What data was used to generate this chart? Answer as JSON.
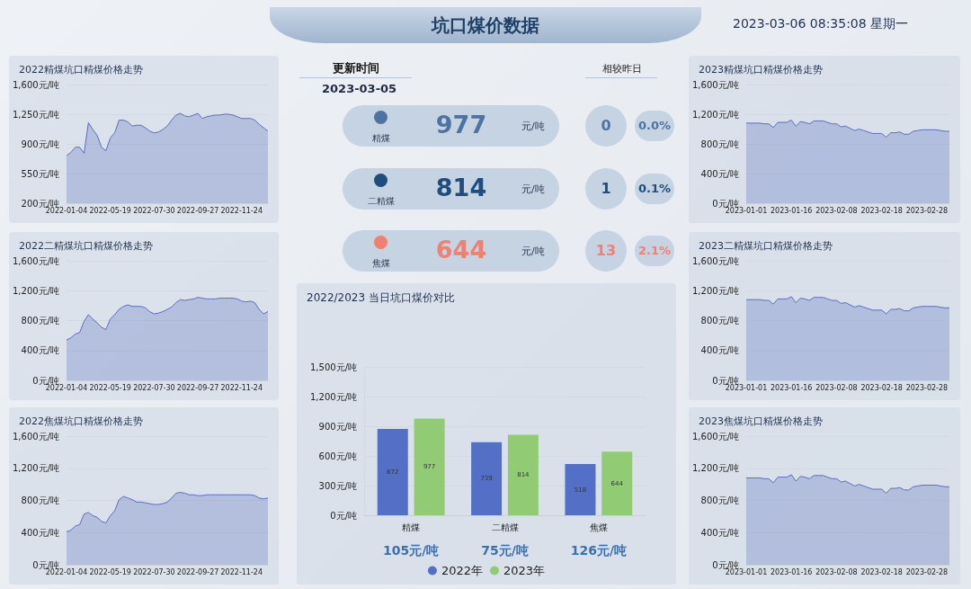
{
  "chart_data": [
    {
      "type": "other",
      "title": "坑口煤价数据",
      "annotations": [
        "2023-03-06 08:35:08 星期一",
        "更新时间",
        "2023-03-05",
        "相较昨日",
        "精煤",
        "977",
        "元/吨",
        "0",
        "0.0%",
        "二精煤",
        "814",
        "元/吨",
        "1",
        "0.1%",
        "焦煤",
        "644",
        "元/吨",
        "13",
        "2.1%"
      ]
    },
    {
      "type": "area",
      "title": "2022精煤坑口精煤价格走势",
      "color": "#5b6fbf",
      "grid": "y",
      "ylim": [
        200,
        1600
      ],
      "yticks": [
        {
          "value": 200,
          "label": "200元/吨"
        },
        {
          "value": 550,
          "label": "550元/吨"
        },
        {
          "value": 900,
          "label": "900元/吨"
        },
        {
          "value": 1250,
          "label": "1,250元/吨"
        },
        {
          "value": 1600,
          "label": "1,600元/吨"
        }
      ],
      "categories": [
        "2022-01-04",
        null,
        null,
        null,
        null,
        null,
        null,
        null,
        null,
        null,
        "2022-05-19",
        null,
        null,
        null,
        null,
        null,
        null,
        null,
        null,
        null,
        "2022-07-30",
        null,
        null,
        null,
        null,
        null,
        null,
        null,
        null,
        null,
        "2022-09-27",
        null,
        null,
        null,
        null,
        null,
        null,
        null,
        null,
        null,
        "2022-11-24",
        null,
        null,
        null,
        null,
        null,
        null
      ],
      "values": [
        760,
        800,
        860,
        860,
        790,
        1150,
        1070,
        1000,
        860,
        820,
        970,
        1030,
        1180,
        1180,
        1160,
        1110,
        1120,
        1120,
        1090,
        1050,
        1030,
        1040,
        1070,
        1110,
        1180,
        1240,
        1260,
        1230,
        1220,
        1240,
        1260,
        1200,
        1220,
        1230,
        1240,
        1240,
        1250,
        1250,
        1240,
        1220,
        1200,
        1200,
        1200,
        1180,
        1130,
        1090,
        1050
      ]
    },
    {
      "type": "area",
      "title": "2022二精煤坑口精煤价格走势",
      "color": "#5b6fbf",
      "grid": "y",
      "ylim": [
        0,
        1600
      ],
      "yticks": [
        {
          "value": 0,
          "label": "0元/吨"
        },
        {
          "value": 400,
          "label": "400元/吨"
        },
        {
          "value": 800,
          "label": "800元/吨"
        },
        {
          "value": 1200,
          "label": "1,200元/吨"
        },
        {
          "value": 1600,
          "label": "1,600元/吨"
        }
      ],
      "categories": [
        "2022-01-04",
        null,
        null,
        null,
        null,
        null,
        null,
        null,
        null,
        null,
        "2022-05-19",
        null,
        null,
        null,
        null,
        null,
        null,
        null,
        null,
        null,
        "2022-07-30",
        null,
        null,
        null,
        null,
        null,
        null,
        null,
        null,
        null,
        "2022-09-27",
        null,
        null,
        null,
        null,
        null,
        null,
        null,
        null,
        null,
        "2022-11-24",
        null,
        null,
        null,
        null,
        null,
        null
      ],
      "values": [
        540,
        570,
        620,
        640,
        790,
        880,
        820,
        770,
        710,
        680,
        820,
        880,
        950,
        990,
        1010,
        990,
        990,
        990,
        970,
        920,
        890,
        900,
        920,
        950,
        980,
        1040,
        1080,
        1070,
        1080,
        1090,
        1110,
        1100,
        1090,
        1090,
        1090,
        1100,
        1100,
        1100,
        1100,
        1090,
        1060,
        1050,
        1060,
        1040,
        950,
        890,
        920
      ]
    },
    {
      "type": "area",
      "title": "2022焦煤坑口精煤价格走势",
      "color": "#5b6fbf",
      "grid": "y",
      "ylim": [
        0,
        1600
      ],
      "yticks": [
        {
          "value": 0,
          "label": "0元/吨"
        },
        {
          "value": 400,
          "label": "400元/吨"
        },
        {
          "value": 800,
          "label": "800元/吨"
        },
        {
          "value": 1200,
          "label": "1,200元/吨"
        },
        {
          "value": 1600,
          "label": "1,600元/吨"
        }
      ],
      "categories": [
        "2022-01-04",
        null,
        null,
        null,
        null,
        null,
        null,
        null,
        null,
        null,
        "2022-05-19",
        null,
        null,
        null,
        null,
        null,
        null,
        null,
        null,
        null,
        "2022-07-30",
        null,
        null,
        null,
        null,
        null,
        null,
        null,
        null,
        null,
        "2022-09-27",
        null,
        null,
        null,
        null,
        null,
        null,
        null,
        null,
        null,
        "2022-11-24",
        null,
        null,
        null,
        null,
        null,
        null
      ],
      "values": [
        410,
        430,
        480,
        500,
        630,
        650,
        610,
        590,
        540,
        520,
        610,
        670,
        810,
        850,
        830,
        810,
        780,
        780,
        770,
        760,
        750,
        750,
        760,
        780,
        830,
        890,
        900,
        890,
        870,
        870,
        860,
        860,
        870,
        870,
        870,
        870,
        870,
        870,
        870,
        870,
        870,
        870,
        870,
        860,
        830,
        820,
        830
      ]
    },
    {
      "type": "area",
      "title": "2023精煤坑口精煤价格走势",
      "color": "#5b6fbf",
      "grid": "y",
      "ylim": [
        0,
        1600
      ],
      "yticks": [
        {
          "value": 0,
          "label": "0元/吨"
        },
        {
          "value": 400,
          "label": "400元/吨"
        },
        {
          "value": 800,
          "label": "800元/吨"
        },
        {
          "value": 1200,
          "label": "1,200元/吨"
        },
        {
          "value": 1600,
          "label": "1,600元/吨"
        }
      ],
      "categories": [
        "2023-01-01",
        null,
        null,
        null,
        null,
        null,
        null,
        null,
        null,
        null,
        "2023-01-16",
        null,
        null,
        null,
        null,
        null,
        null,
        null,
        null,
        null,
        "2023-02-08",
        null,
        null,
        null,
        null,
        null,
        null,
        null,
        null,
        null,
        "2023-02-18",
        null,
        null,
        null,
        null,
        null,
        null,
        null,
        null,
        null,
        "2023-02-28",
        null,
        null,
        null,
        null,
        null
      ],
      "values": [
        1080,
        1080,
        1080,
        1080,
        1070,
        1070,
        1020,
        1090,
        1090,
        1090,
        1120,
        1040,
        1100,
        1090,
        1070,
        1110,
        1110,
        1110,
        1090,
        1070,
        1070,
        1030,
        1040,
        1010,
        980,
        1000,
        980,
        960,
        940,
        940,
        940,
        890,
        950,
        950,
        960,
        930,
        930,
        970,
        980,
        990,
        990,
        990,
        990,
        980,
        970,
        970
      ]
    },
    {
      "type": "area",
      "title": "2023二精煤坑口精煤价格走势",
      "color": "#5b6fbf",
      "grid": "y",
      "ylim": [
        0,
        1600
      ],
      "yticks": [
        {
          "value": 0,
          "label": "0元/吨"
        },
        {
          "value": 400,
          "label": "400元/吨"
        },
        {
          "value": 800,
          "label": "800元/吨"
        },
        {
          "value": 1200,
          "label": "1,200元/吨"
        },
        {
          "value": 1600,
          "label": "1,600元/吨"
        }
      ],
      "categories": [
        "2023-01-01",
        null,
        null,
        null,
        null,
        null,
        null,
        null,
        null,
        null,
        "2023-01-16",
        null,
        null,
        null,
        null,
        null,
        null,
        null,
        null,
        null,
        "2023-02-08",
        null,
        null,
        null,
        null,
        null,
        null,
        null,
        null,
        null,
        "2023-02-18",
        null,
        null,
        null,
        null,
        null,
        null,
        null,
        null,
        null,
        "2023-02-28",
        null,
        null,
        null,
        null,
        null
      ],
      "values": [
        1080,
        1080,
        1080,
        1080,
        1070,
        1070,
        1020,
        1090,
        1090,
        1090,
        1120,
        1040,
        1100,
        1090,
        1070,
        1110,
        1110,
        1110,
        1090,
        1070,
        1070,
        1030,
        1040,
        1010,
        980,
        1000,
        980,
        960,
        940,
        940,
        940,
        890,
        950,
        950,
        960,
        930,
        930,
        970,
        980,
        990,
        990,
        990,
        990,
        980,
        970,
        970
      ]
    },
    {
      "type": "area",
      "title": "2023焦煤坑口精煤价格走势",
      "color": "#5b6fbf",
      "grid": "y",
      "ylim": [
        0,
        1600
      ],
      "yticks": [
        {
          "value": 0,
          "label": "0元/吨"
        },
        {
          "value": 400,
          "label": "400元/吨"
        },
        {
          "value": 800,
          "label": "800元/吨"
        },
        {
          "value": 1200,
          "label": "1,200元/吨"
        },
        {
          "value": 1600,
          "label": "1,600元/吨"
        }
      ],
      "categories": [
        "2023-01-01",
        null,
        null,
        null,
        null,
        null,
        null,
        null,
        null,
        null,
        "2023-01-16",
        null,
        null,
        null,
        null,
        null,
        null,
        null,
        null,
        null,
        "2023-02-08",
        null,
        null,
        null,
        null,
        null,
        null,
        null,
        null,
        null,
        "2023-02-18",
        null,
        null,
        null,
        null,
        null,
        null,
        null,
        null,
        null,
        "2023-02-28",
        null,
        null,
        null,
        null,
        null
      ],
      "values": [
        1080,
        1080,
        1080,
        1080,
        1070,
        1070,
        1020,
        1090,
        1090,
        1090,
        1120,
        1040,
        1100,
        1090,
        1070,
        1110,
        1110,
        1110,
        1090,
        1070,
        1070,
        1030,
        1040,
        1010,
        980,
        1000,
        980,
        960,
        940,
        940,
        940,
        890,
        950,
        950,
        960,
        930,
        930,
        970,
        980,
        990,
        990,
        990,
        990,
        980,
        970,
        970
      ]
    },
    {
      "type": "bar",
      "title": "2022/2023 当日坑口煤价对比",
      "categories": [
        "精煤",
        "二精煤",
        "焦煤"
      ],
      "grid": "y",
      "legend": "bottom",
      "data_labels": true,
      "ylim": [
        0,
        1500
      ],
      "yticks": [
        {
          "value": 0,
          "label": "0元/吨"
        },
        {
          "value": 300,
          "label": "300元/吨"
        },
        {
          "value": 600,
          "label": "600元/吨"
        },
        {
          "value": 900,
          "label": "900元/吨"
        },
        {
          "value": 1200,
          "label": "1,200元/吨"
        },
        {
          "value": 1500,
          "label": "1,500元/吨"
        }
      ],
      "series": [
        {
          "name": "2022年",
          "color": "#5470c6",
          "values": [
            872,
            739,
            518
          ]
        },
        {
          "name": "2023年",
          "color": "#91cc75",
          "values": [
            977,
            814,
            644
          ]
        }
      ],
      "annotations": [
        "105元/吨",
        "75元/吨",
        "126元/吨"
      ]
    }
  ]
}
